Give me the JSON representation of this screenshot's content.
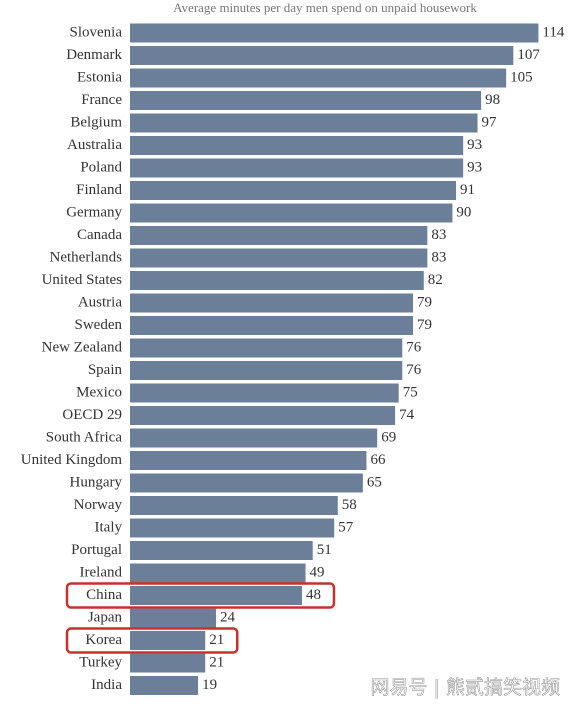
{
  "chart_data": {
    "type": "hbar",
    "title": "Average minutes per day men spend on unpaid housework",
    "categories": [
      "Slovenia",
      "Denmark",
      "Estonia",
      "France",
      "Belgium",
      "Australia",
      "Poland",
      "Finland",
      "Germany",
      "Canada",
      "Netherlands",
      "United States",
      "Austria",
      "Sweden",
      "New Zealand",
      "Spain",
      "Mexico",
      "OECD 29",
      "South Africa",
      "United Kingdom",
      "Hungary",
      "Norway",
      "Italy",
      "Portugal",
      "Ireland",
      "China",
      "Japan",
      "Korea",
      "Turkey",
      "India"
    ],
    "values": [
      114,
      107,
      105,
      98,
      97,
      93,
      93,
      91,
      90,
      83,
      83,
      82,
      79,
      79,
      76,
      76,
      75,
      74,
      69,
      66,
      65,
      58,
      57,
      51,
      49,
      48,
      24,
      21,
      21,
      19
    ],
    "color": "#6b7f99",
    "xlim": [
      0,
      115
    ],
    "highlighted": [
      "China",
      "Korea"
    ],
    "highlight_color": "#c8302c",
    "watermark": "网易号 | 熊贰搞笑视频"
  }
}
